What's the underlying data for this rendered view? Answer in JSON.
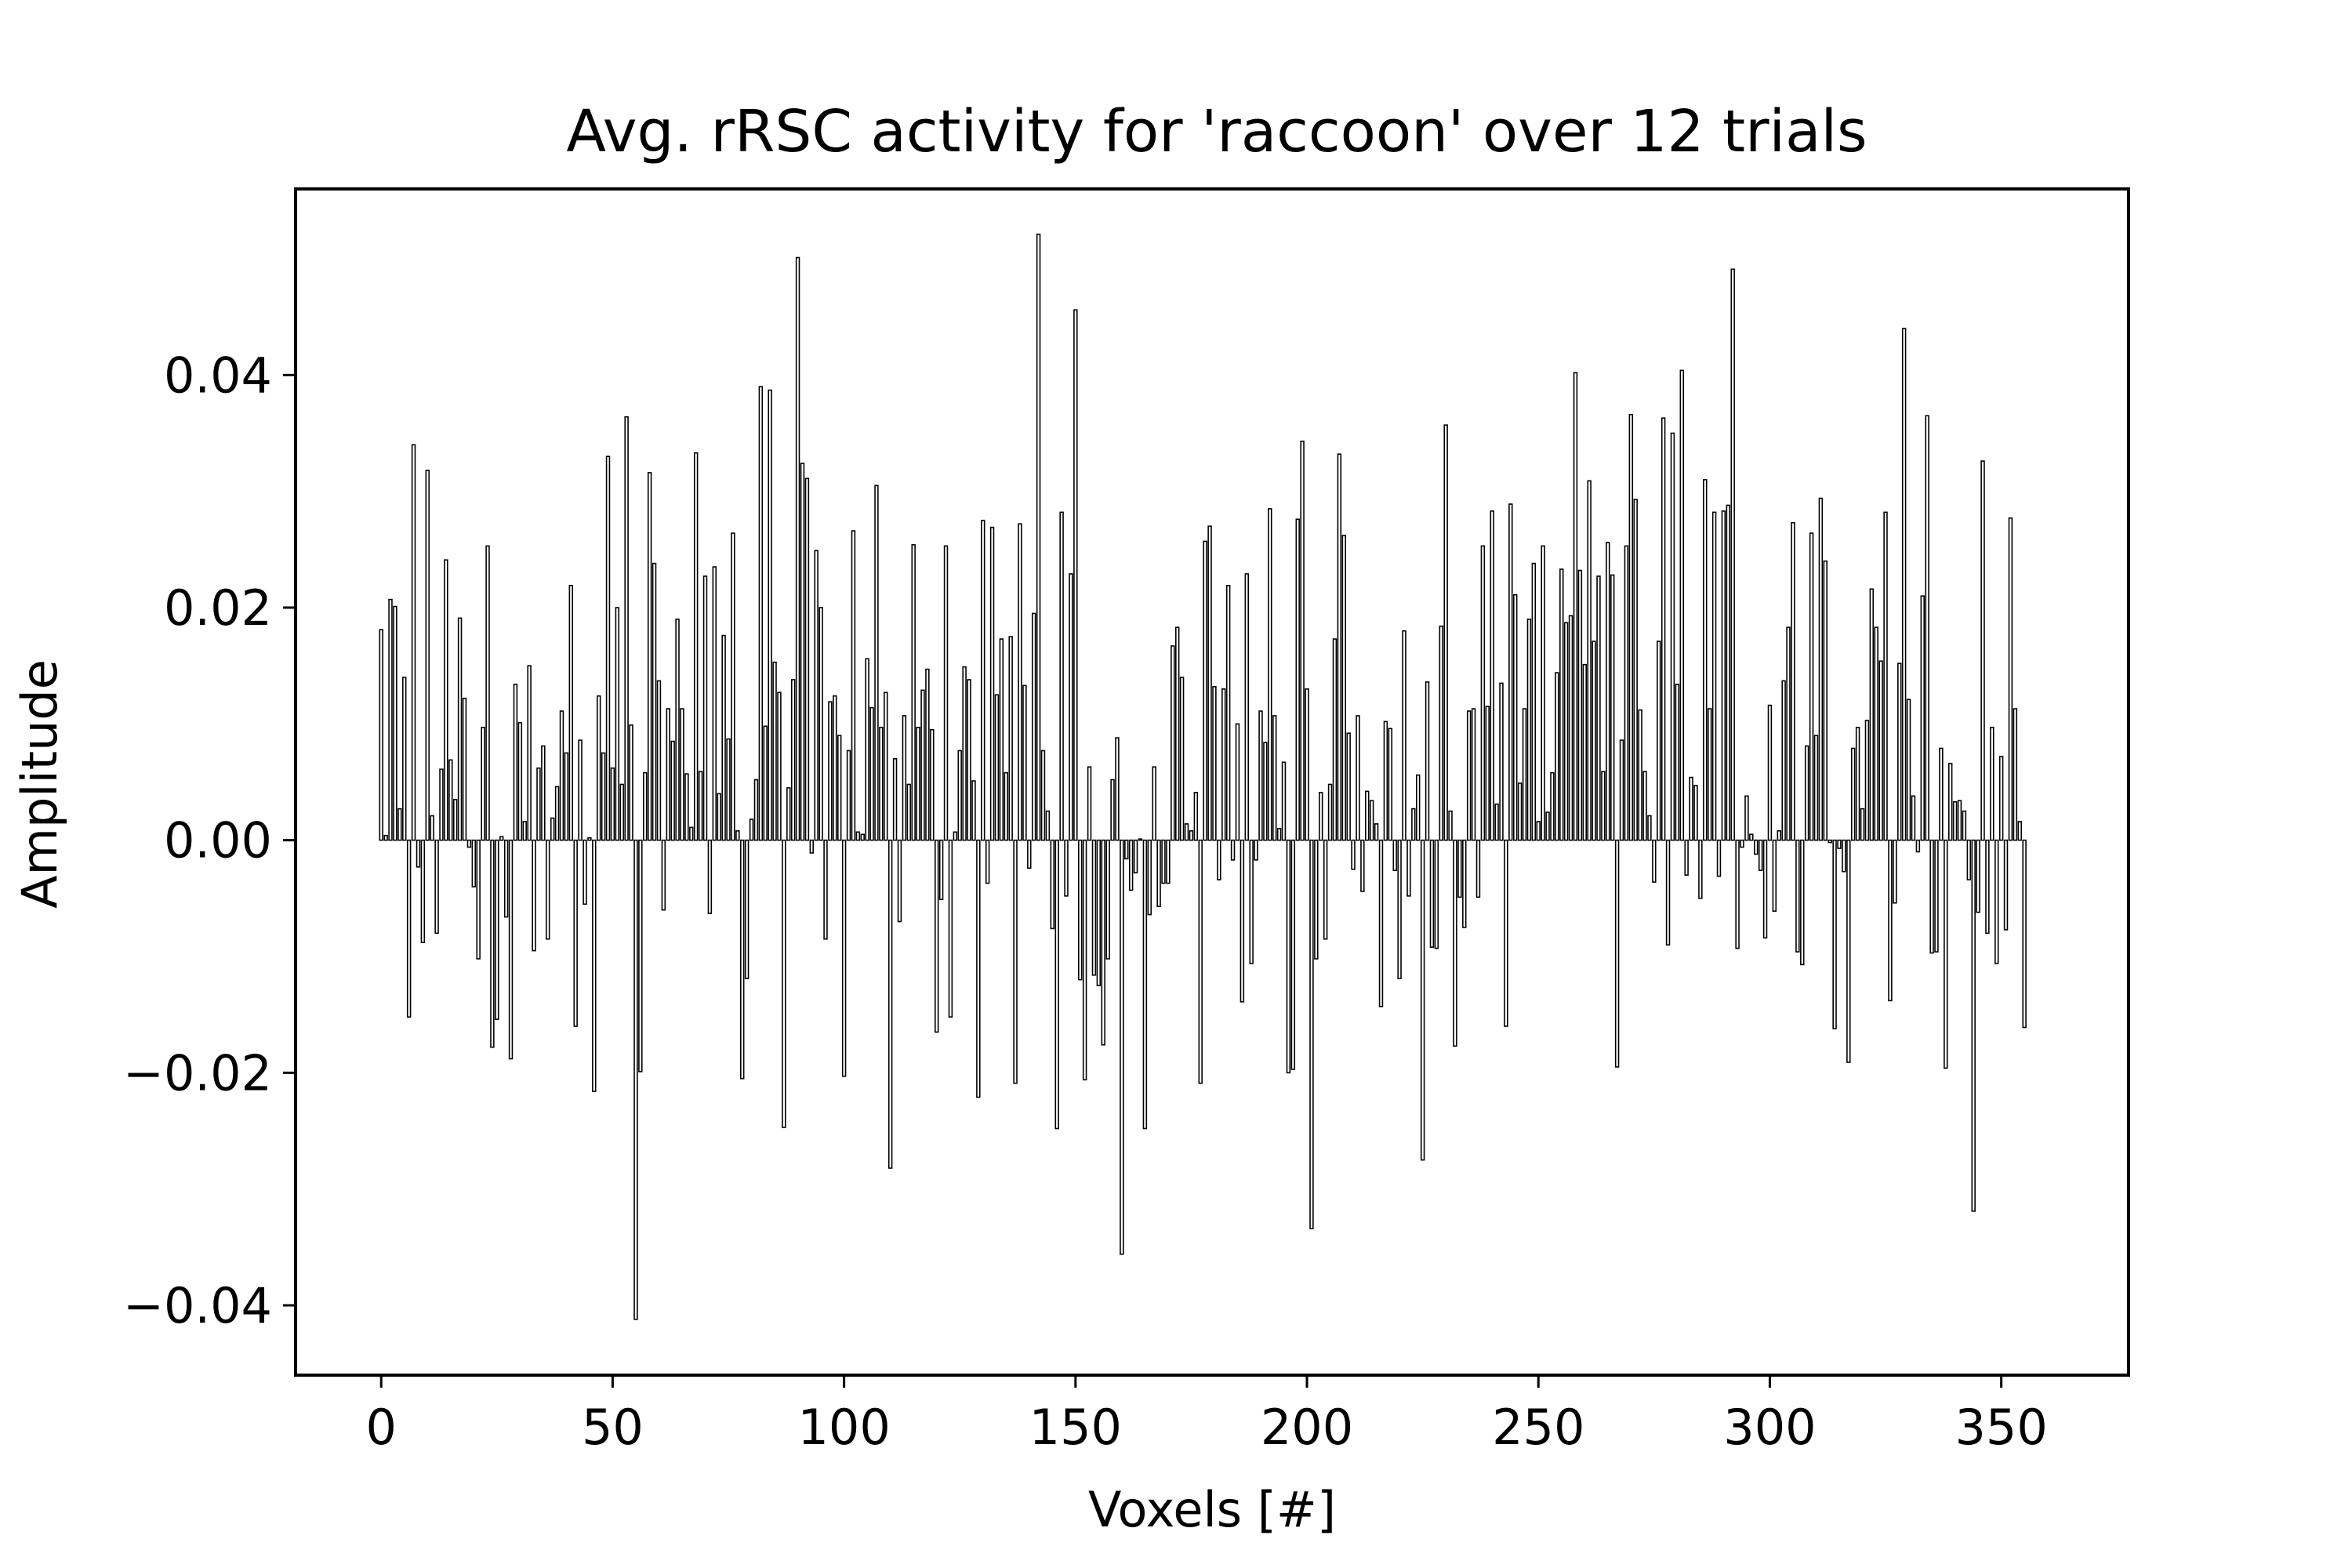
{
  "chart_data": {
    "type": "bar",
    "title": "Avg. rRSC activity for 'raccoon' over 12 trials",
    "xlabel": "Voxels [#]",
    "ylabel": "Amplitude",
    "xlim": [
      -18.5,
      377.5
    ],
    "ylim": [
      -0.046,
      0.056
    ],
    "xticks": [
      0,
      50,
      100,
      150,
      200,
      250,
      300,
      350
    ],
    "xtick_labels": [
      "0",
      "50",
      "100",
      "150",
      "200",
      "250",
      "300",
      "350"
    ],
    "yticks": [
      -0.04,
      -0.02,
      0.0,
      0.02,
      0.04
    ],
    "ytick_labels": [
      "−0.04",
      "−0.02",
      "0.00",
      "0.02",
      "0.04"
    ],
    "grid": false,
    "bar_color": "#000000",
    "x": "voxel index 0..358",
    "values": [
      0.0181,
      0.0004,
      0.0207,
      0.0201,
      0.0027,
      0.014,
      -0.0152,
      0.034,
      -0.0023,
      -0.0088,
      0.0318,
      0.0021,
      -0.008,
      0.0061,
      0.0241,
      0.0069,
      0.0035,
      0.0191,
      0.0122,
      -0.0006,
      -0.004,
      -0.0102,
      0.0097,
      0.0253,
      -0.0178,
      -0.0154,
      0.0003,
      -0.0066,
      -0.0188,
      0.0134,
      0.0101,
      0.0016,
      0.015,
      -0.0095,
      0.0062,
      0.0081,
      -0.0085,
      0.0019,
      0.0046,
      0.0111,
      0.0075,
      0.0219,
      -0.016,
      0.0086,
      -0.0055,
      0.0002,
      -0.0216,
      0.0124,
      0.0075,
      0.033,
      0.0062,
      0.02,
      0.0048,
      0.0364,
      0.0099,
      -0.0412,
      -0.0199,
      0.0058,
      0.0316,
      0.0238,
      0.0137,
      -0.006,
      0.0113,
      0.0085,
      0.019,
      0.0113,
      0.0057,
      0.0011,
      0.0333,
      0.0059,
      0.0227,
      -0.0063,
      0.0235,
      0.004,
      0.0176,
      0.0087,
      0.0264,
      0.0008,
      -0.0205,
      -0.0119,
      0.0018,
      0.0052,
      0.039,
      0.0098,
      0.0387,
      0.0153,
      0.0127,
      -0.0247,
      0.0045,
      0.0138,
      0.0501,
      0.0324,
      0.0311,
      -0.0011,
      0.0249,
      0.02,
      -0.0085,
      0.0119,
      0.0124,
      0.009,
      -0.0203,
      0.0077,
      0.0266,
      0.0007,
      0.0005,
      0.0156,
      0.0114,
      0.0305,
      0.0097,
      0.0127,
      -0.0282,
      0.007,
      -0.007,
      0.0107,
      0.0048,
      0.0254,
      0.0097,
      0.0129,
      0.0147,
      0.0095,
      -0.0165,
      -0.0051,
      0.0253,
      -0.0152,
      0.0007,
      0.0077,
      0.0149,
      0.0138,
      0.0051,
      -0.0221,
      0.0275,
      -0.0037,
      0.0269,
      0.0125,
      0.0173,
      0.0058,
      0.0175,
      -0.0209,
      0.0272,
      0.0133,
      -0.0024,
      0.0195,
      0.0521,
      0.0077,
      0.0025,
      -0.0076,
      -0.0248,
      0.0282,
      -0.0048,
      0.0229,
      0.0456,
      -0.012,
      -0.0206,
      0.0063,
      -0.0116,
      -0.0125,
      -0.0176,
      -0.0102,
      0.0052,
      0.0088,
      -0.0356,
      -0.0016,
      -0.0043,
      -0.0028,
      0.0001,
      -0.0248,
      -0.0064,
      0.0063,
      -0.0057,
      -0.0037,
      -0.0037,
      0.0167,
      0.0183,
      0.014,
      0.0014,
      0.0008,
      0.0041,
      -0.0209,
      0.0257,
      0.027,
      0.0132,
      -0.0034,
      0.013,
      0.0219,
      -0.0017,
      0.01,
      -0.0139,
      0.0229,
      -0.0106,
      -0.0017,
      0.0111,
      0.0084,
      0.0285,
      0.0107,
      0.001,
      0.0067,
      -0.02,
      -0.0197,
      0.0276,
      0.0343,
      0.013,
      -0.0334,
      -0.0102,
      0.0041,
      -0.0085,
      0.0048,
      0.0173,
      0.0332,
      0.0262,
      0.0092,
      -0.0025,
      0.0107,
      -0.0044,
      0.0042,
      0.0034,
      0.0014,
      -0.0143,
      0.0102,
      0.0096,
      -0.0026,
      -0.0119,
      0.018,
      -0.0048,
      0.0027,
      0.0056,
      -0.0275,
      0.0136,
      -0.0092,
      -0.0093,
      0.0184,
      0.0357,
      0.0025,
      -0.0177,
      -0.0049,
      -0.0075,
      0.0111,
      0.0113,
      -0.0049,
      0.0253,
      0.0115,
      0.0283,
      0.0031,
      0.0135,
      -0.016,
      0.0289,
      0.0211,
      0.0049,
      0.0113,
      0.019,
      0.0238,
      0.0016,
      0.0253,
      0.0024,
      0.0058,
      0.0144,
      0.0233,
      0.0187,
      0.0193,
      0.0402,
      0.0232,
      0.0151,
      0.0309,
      0.0171,
      0.0227,
      0.0059,
      0.0256,
      0.0228,
      -0.0195,
      0.0086,
      0.0253,
      0.0366,
      0.0293,
      0.0112,
      0.0059,
      0.0021,
      -0.0036,
      0.0171,
      0.0363,
      -0.009,
      0.035,
      0.0134,
      0.0404,
      -0.003,
      0.0054,
      0.0047,
      -0.005,
      0.031,
      0.0113,
      0.0282,
      -0.0031,
      0.0283,
      0.0288,
      0.0491,
      -0.0093,
      -0.0006,
      0.0038,
      0.0005,
      -0.0012,
      -0.0026,
      -0.0084,
      0.0116,
      -0.0061,
      0.0008,
      0.0137,
      0.0183,
      0.0273,
      -0.0096,
      -0.0107,
      0.0081,
      0.0264,
      0.009,
      0.0294,
      0.024,
      -0.0002,
      -0.0162,
      -0.0007,
      -0.0027,
      -0.0191,
      0.0079,
      0.0097,
      0.0027,
      0.0103,
      0.0216,
      0.0183,
      0.0154,
      0.0282,
      -0.0138,
      -0.0054,
      0.0152,
      0.044,
      0.0121,
      0.0038,
      -0.001,
      0.021,
      0.0365,
      -0.0097,
      -0.0096,
      0.0079,
      -0.0196,
      0.0066,
      0.0033,
      0.0034,
      0.0025,
      -0.0034,
      -0.0319,
      -0.0062,
      0.0326,
      -0.008,
      0.0097,
      -0.0106,
      0.0072,
      -0.0077,
      0.0277,
      0.0113,
      0.0016,
      -0.0161
    ]
  }
}
